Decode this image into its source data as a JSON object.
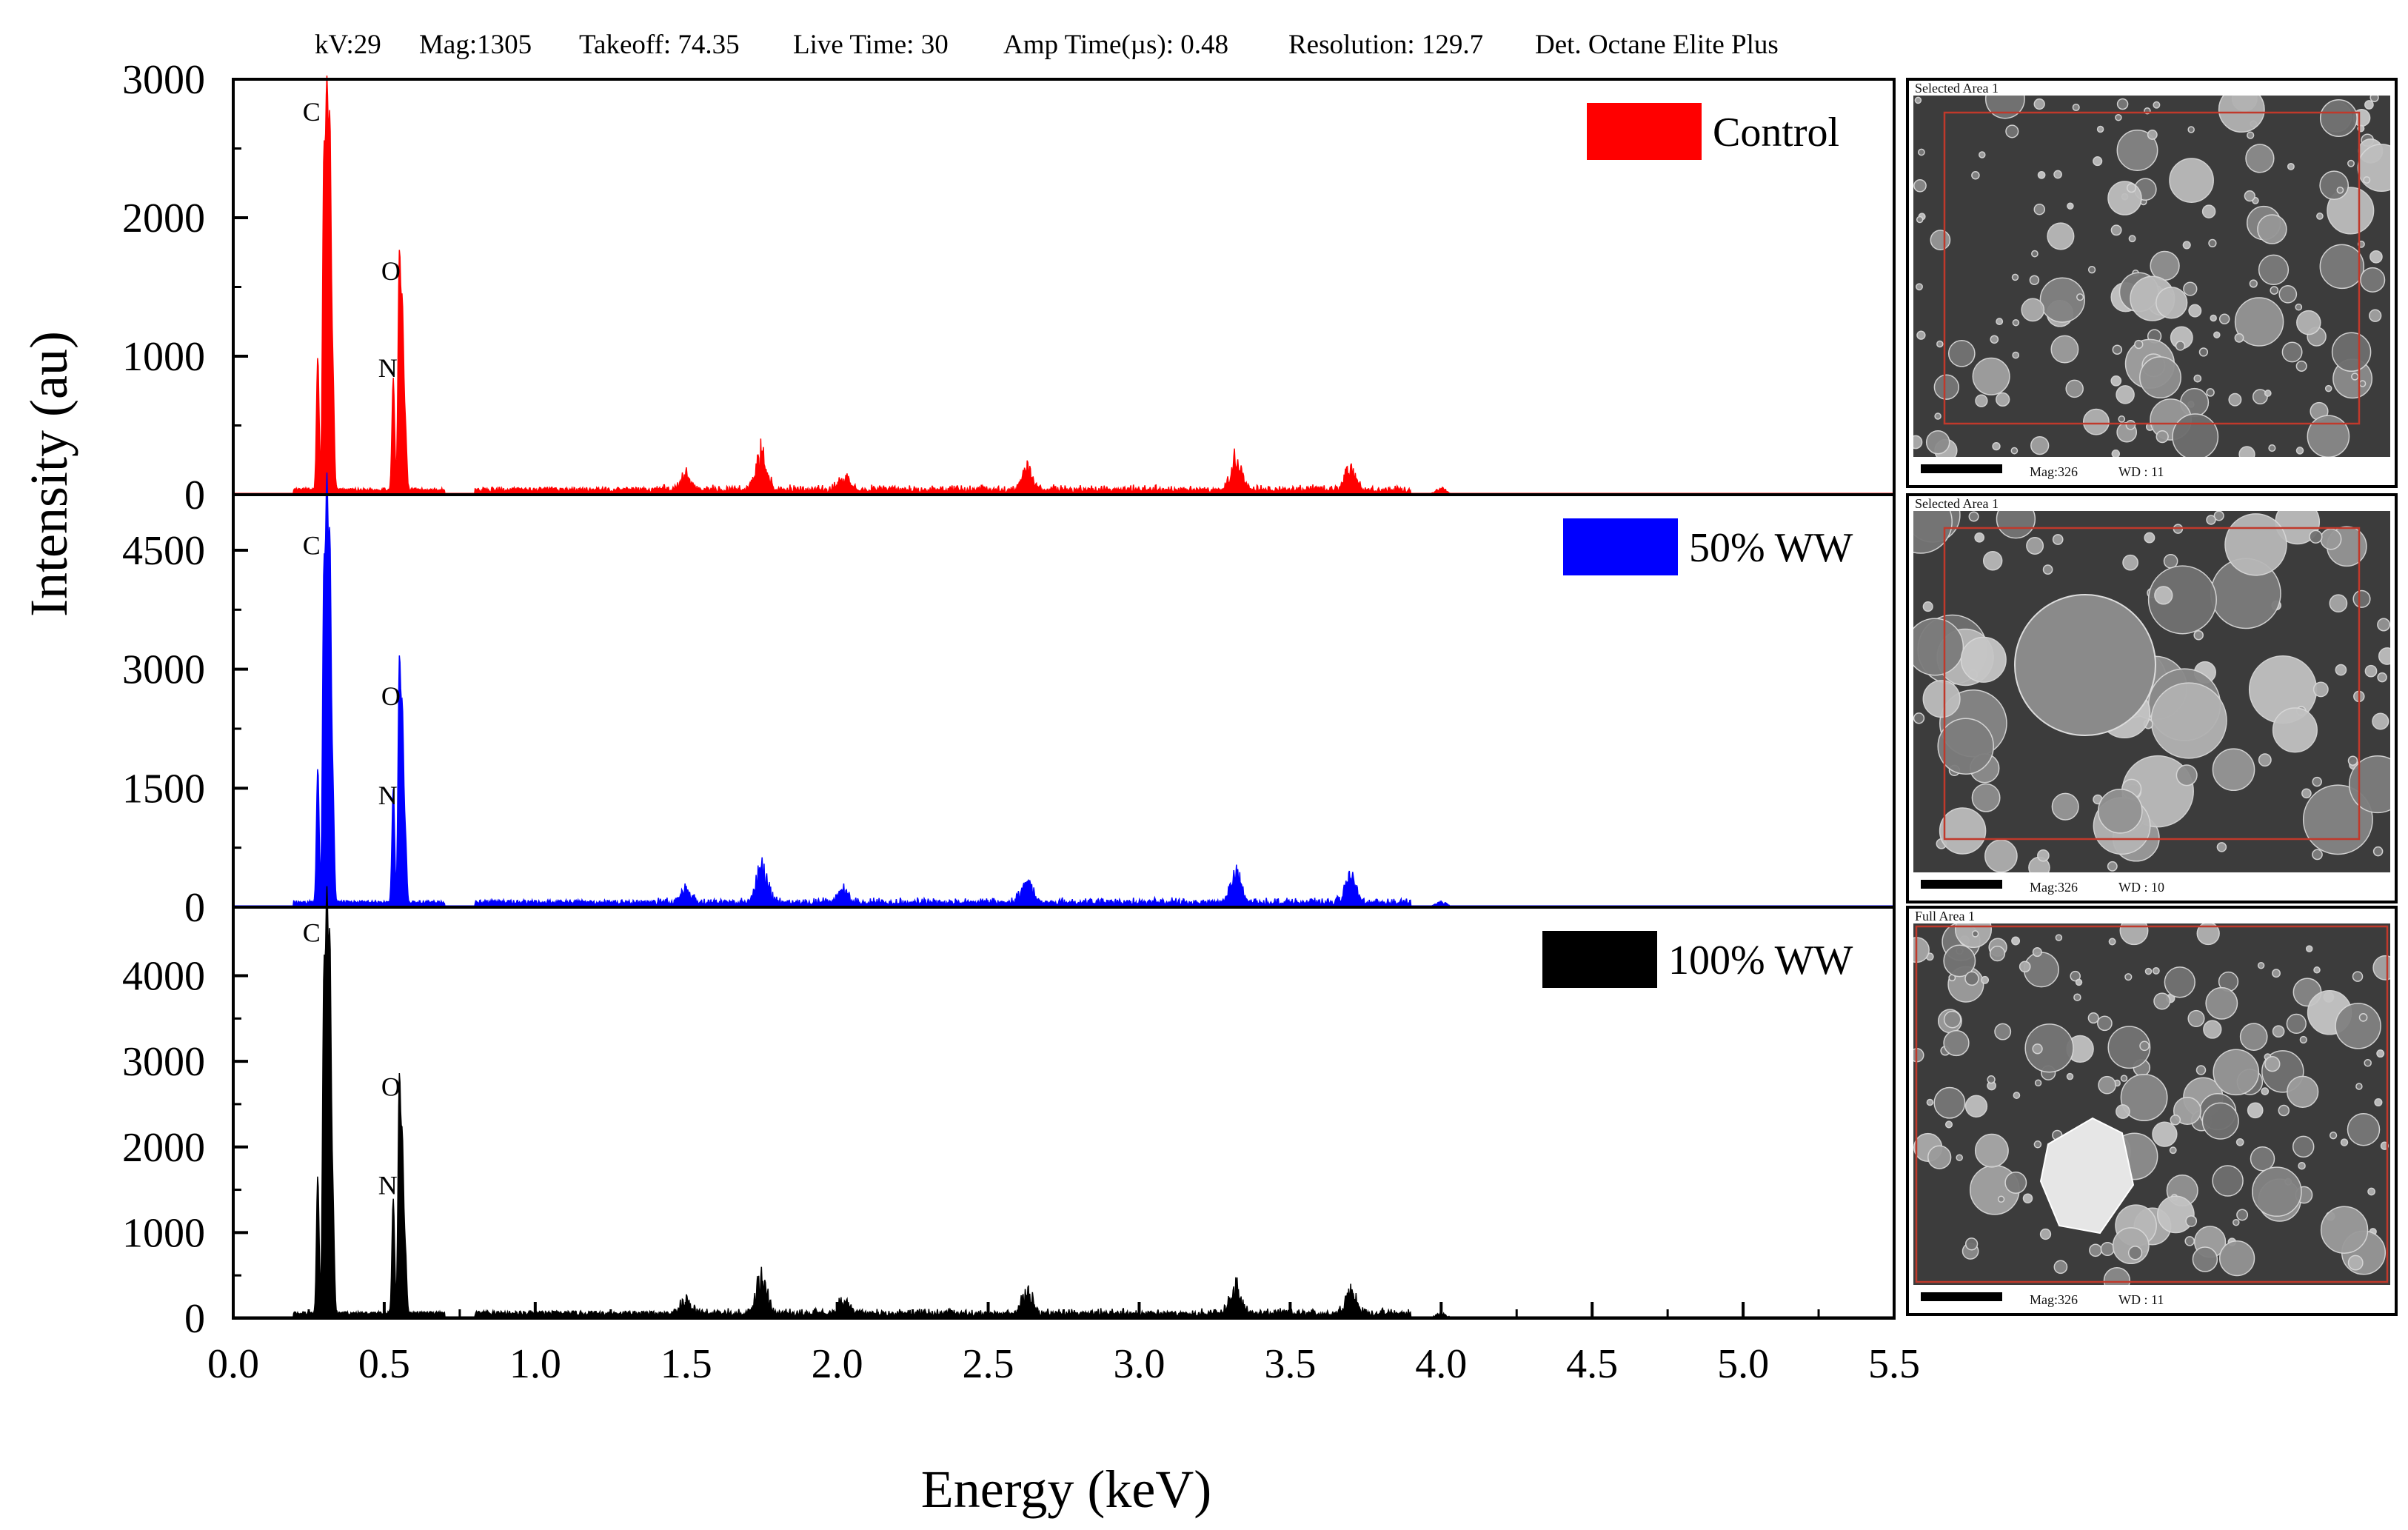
{
  "header": {
    "items": [
      "kV:29",
      "Mag:1305",
      "Takeoff: 74.35",
      "Live Time: 30",
      "Amp Time(µs): 0.48",
      "Resolution: 129.7",
      "Det. Octane Elite Plus"
    ]
  },
  "chart_data": {
    "type": "area",
    "xlabel": "Energy (keV)",
    "ylabel": "Intensity (au)",
    "xlim": [
      0,
      5.5
    ],
    "xticks": [
      "0.0",
      "0.5",
      "1.0",
      "1.5",
      "2.0",
      "2.5",
      "3.0",
      "3.5",
      "4.0",
      "4.5",
      "5.0",
      "5.5"
    ],
    "grid": false,
    "legend_position": "top-right",
    "panels": [
      {
        "name": "Control",
        "color": "#ff0000",
        "ylim": [
          0,
          3000
        ],
        "yticks": [
          0,
          1000,
          2000,
          3000
        ],
        "peak_labels": [
          {
            "label": "C",
            "x": 0.23,
            "y": 2700
          },
          {
            "label": "O",
            "x": 0.49,
            "y": 1550
          },
          {
            "label": "N",
            "x": 0.48,
            "y": 850
          }
        ],
        "peaks": [
          {
            "x": 0.28,
            "y": 950
          },
          {
            "x": 0.3,
            "y": 2300
          },
          {
            "x": 0.31,
            "y": 2700
          },
          {
            "x": 0.32,
            "y": 2500
          },
          {
            "x": 0.33,
            "y": 800
          },
          {
            "x": 0.53,
            "y": 800
          },
          {
            "x": 0.55,
            "y": 1650
          },
          {
            "x": 0.56,
            "y": 1250
          },
          {
            "x": 0.57,
            "y": 450
          },
          {
            "x": 1.5,
            "y": 100
          },
          {
            "x": 1.75,
            "y": 250
          },
          {
            "x": 2.02,
            "y": 80
          },
          {
            "x": 2.63,
            "y": 140
          },
          {
            "x": 3.32,
            "y": 200
          },
          {
            "x": 3.7,
            "y": 150
          },
          {
            "x": 4.0,
            "y": 40
          }
        ]
      },
      {
        "name": "50% WW",
        "color": "#0000ff",
        "ylim": [
          0,
          5200
        ],
        "yticks": [
          0,
          1500,
          3000,
          4500
        ],
        "peak_labels": [
          {
            "label": "C",
            "x": 0.23,
            "y": 4450
          },
          {
            "label": "O",
            "x": 0.49,
            "y": 2550
          },
          {
            "label": "N",
            "x": 0.48,
            "y": 1300
          }
        ],
        "peaks": [
          {
            "x": 0.28,
            "y": 1700
          },
          {
            "x": 0.3,
            "y": 4000
          },
          {
            "x": 0.31,
            "y": 4900
          },
          {
            "x": 0.32,
            "y": 4300
          },
          {
            "x": 0.33,
            "y": 1400
          },
          {
            "x": 0.53,
            "y": 1450
          },
          {
            "x": 0.55,
            "y": 2950
          },
          {
            "x": 0.56,
            "y": 2300
          },
          {
            "x": 0.57,
            "y": 800
          },
          {
            "x": 1.5,
            "y": 150
          },
          {
            "x": 1.75,
            "y": 420
          },
          {
            "x": 2.02,
            "y": 140
          },
          {
            "x": 2.63,
            "y": 240
          },
          {
            "x": 3.32,
            "y": 320
          },
          {
            "x": 3.7,
            "y": 280
          },
          {
            "x": 4.0,
            "y": 60
          }
        ]
      },
      {
        "name": "100% WW",
        "color": "#000000",
        "ylim": [
          0,
          4800
        ],
        "yticks": [
          0,
          1000,
          2000,
          3000,
          4000
        ],
        "peak_labels": [
          {
            "label": "C",
            "x": 0.23,
            "y": 4400
          },
          {
            "label": "O",
            "x": 0.49,
            "y": 2600
          },
          {
            "label": "N",
            "x": 0.48,
            "y": 1450
          }
        ],
        "peaks": [
          {
            "x": 0.28,
            "y": 1600
          },
          {
            "x": 0.3,
            "y": 3800
          },
          {
            "x": 0.31,
            "y": 4500
          },
          {
            "x": 0.32,
            "y": 4100
          },
          {
            "x": 0.33,
            "y": 1300
          },
          {
            "x": 0.53,
            "y": 1350
          },
          {
            "x": 0.55,
            "y": 2700
          },
          {
            "x": 0.56,
            "y": 1900
          },
          {
            "x": 0.57,
            "y": 700
          },
          {
            "x": 1.5,
            "y": 140
          },
          {
            "x": 1.75,
            "y": 380
          },
          {
            "x": 2.02,
            "y": 120
          },
          {
            "x": 2.63,
            "y": 220
          },
          {
            "x": 3.32,
            "y": 300
          },
          {
            "x": 3.7,
            "y": 260
          },
          {
            "x": 4.0,
            "y": 50
          }
        ]
      }
    ]
  },
  "sem_images": [
    {
      "title": "Selected Area 1",
      "mag": "Mag:326",
      "wd": "WD : 11"
    },
    {
      "title": "Selected Area 1",
      "mag": "Mag:326",
      "wd": "WD : 10"
    },
    {
      "title": "Full Area 1",
      "mag": "Mag:326",
      "wd": "WD : 11"
    }
  ]
}
